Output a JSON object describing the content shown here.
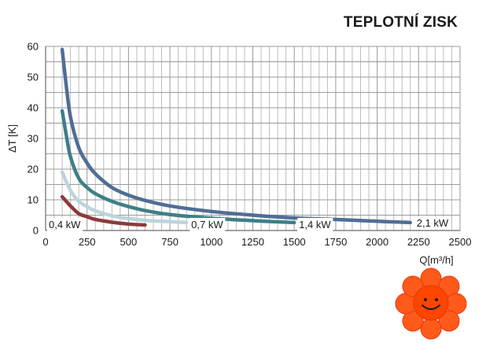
{
  "chart_title": "TEPLOTNÍ ZISK",
  "chart_data": {
    "type": "line",
    "title": "TEPLOTNÍ ZISK",
    "xlabel": "Q[m³/h]",
    "ylabel": "ΔT [K]",
    "xlim": [
      0,
      2500
    ],
    "ylim": [
      0,
      60
    ],
    "x_ticks": [
      "0",
      "250",
      "500",
      "750",
      "1000",
      "1250",
      "1500",
      "1750",
      "2000",
      "2250",
      "2500"
    ],
    "y_ticks": [
      "0",
      "10",
      "20",
      "30",
      "40",
      "50",
      "60"
    ],
    "grid": true,
    "series": [
      {
        "name": "0,4 kW",
        "color": "#8b3a3a",
        "points": [
          [
            100,
            11
          ],
          [
            150,
            8
          ],
          [
            200,
            5.5
          ],
          [
            250,
            4.5
          ],
          [
            300,
            3.6
          ],
          [
            400,
            2.7
          ],
          [
            500,
            2.1
          ],
          [
            600,
            1.8
          ]
        ]
      },
      {
        "name": "0,7 kW",
        "color": "#bcd4db",
        "points": [
          [
            100,
            19
          ],
          [
            150,
            13
          ],
          [
            200,
            9.5
          ],
          [
            250,
            7.8
          ],
          [
            300,
            6.4
          ],
          [
            400,
            4.8
          ],
          [
            500,
            3.9
          ],
          [
            600,
            3.3
          ],
          [
            700,
            3.0
          ],
          [
            850,
            2.6
          ]
        ]
      },
      {
        "name": "1,4 kW",
        "color": "#3e7f87",
        "points": [
          [
            100,
            39
          ],
          [
            125,
            31
          ],
          [
            150,
            24
          ],
          [
            200,
            17
          ],
          [
            250,
            14
          ],
          [
            300,
            12
          ],
          [
            400,
            9.5
          ],
          [
            500,
            7.8
          ],
          [
            600,
            6.5
          ],
          [
            750,
            5.2
          ],
          [
            1000,
            4.0
          ],
          [
            1250,
            3.2
          ],
          [
            1500,
            2.6
          ]
        ]
      },
      {
        "name": "2,1 kW",
        "color": "#4f6e94",
        "points": [
          [
            100,
            59
          ],
          [
            125,
            47
          ],
          [
            150,
            37
          ],
          [
            200,
            27
          ],
          [
            250,
            22
          ],
          [
            300,
            18.5
          ],
          [
            400,
            14
          ],
          [
            500,
            11.5
          ],
          [
            600,
            9.8
          ],
          [
            750,
            8
          ],
          [
            1000,
            6.2
          ],
          [
            1250,
            5
          ],
          [
            1500,
            4.1
          ],
          [
            1750,
            3.6
          ],
          [
            2000,
            3.0
          ],
          [
            2200,
            2.6
          ]
        ]
      }
    ]
  }
}
